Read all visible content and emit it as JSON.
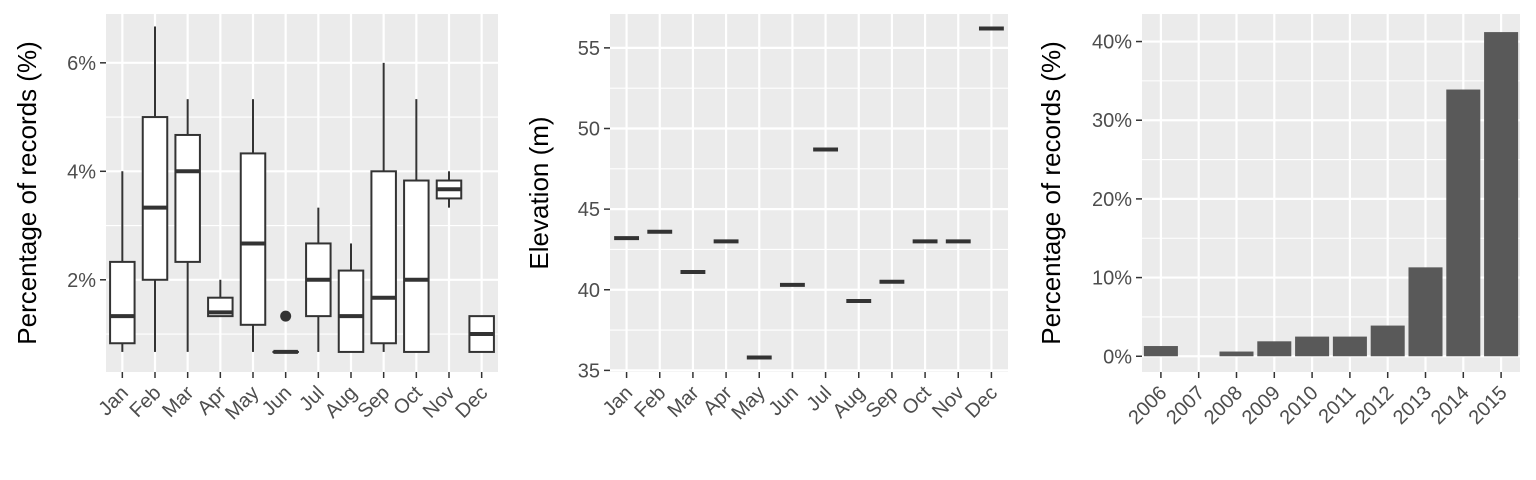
{
  "colors": {
    "panel_bg": "#EBEBEB",
    "grid_major": "#FFFFFF",
    "box_fill": "#FFFFFF",
    "box_stroke": "#333333",
    "bar_fill": "#595959",
    "tick_text": "#4D4D4D"
  },
  "chart_data": [
    {
      "type": "box",
      "xlabel": "",
      "ylabel": "Percentage of records (%)",
      "ylim": [
        0.3,
        6.9
      ],
      "yticks": [
        2,
        4,
        6
      ],
      "ytick_labels": [
        "2%",
        "4%",
        "6%"
      ],
      "grid": true,
      "categories": [
        "Jan",
        "Feb",
        "Mar",
        "Apr",
        "May",
        "Jun",
        "Jul",
        "Aug",
        "Sep",
        "Oct",
        "Nov",
        "Dec"
      ],
      "boxes": [
        {
          "min": 0.67,
          "q1": 0.83,
          "median": 1.33,
          "q3": 2.33,
          "max": 4.0
        },
        {
          "min": 0.67,
          "q1": 2.0,
          "median": 3.33,
          "q3": 5.0,
          "max": 6.67
        },
        {
          "min": 0.67,
          "q1": 2.33,
          "median": 4.0,
          "q3": 4.67,
          "max": 5.33
        },
        {
          "min": 1.33,
          "q1": 1.33,
          "median": 1.4,
          "q3": 1.67,
          "max": 2.0
        },
        {
          "min": 0.67,
          "q1": 1.17,
          "median": 2.67,
          "q3": 4.33,
          "max": 5.33
        },
        {
          "min": 0.67,
          "q1": 0.67,
          "median": 0.67,
          "q3": 0.67,
          "max": 0.67,
          "outliers": [
            1.33
          ]
        },
        {
          "min": 0.67,
          "q1": 1.33,
          "median": 2.0,
          "q3": 2.67,
          "max": 3.33
        },
        {
          "min": 0.67,
          "q1": 0.67,
          "median": 1.33,
          "q3": 2.17,
          "max": 2.67
        },
        {
          "min": 0.67,
          "q1": 0.83,
          "median": 1.67,
          "q3": 4.0,
          "max": 6.0
        },
        {
          "min": 0.67,
          "q1": 0.67,
          "median": 2.0,
          "q3": 3.83,
          "max": 5.33
        },
        {
          "min": 3.33,
          "q1": 3.5,
          "median": 3.67,
          "q3": 3.83,
          "max": 4.0
        },
        {
          "min": 0.67,
          "q1": 0.67,
          "median": 1.0,
          "q3": 1.33,
          "max": 1.33
        }
      ]
    },
    {
      "type": "box",
      "xlabel": "",
      "ylabel": "Elevation (m)",
      "ylim": [
        34.9,
        57.1
      ],
      "yticks": [
        35,
        40,
        45,
        50,
        55
      ],
      "ytick_labels": [
        "35",
        "40",
        "45",
        "50",
        "55"
      ],
      "grid": true,
      "categories": [
        "Jan",
        "Feb",
        "Mar",
        "Apr",
        "May",
        "Jun",
        "Jul",
        "Aug",
        "Sep",
        "Oct",
        "Nov",
        "Dec"
      ],
      "values": [
        43.2,
        43.6,
        41.1,
        43.0,
        35.8,
        40.3,
        48.7,
        39.3,
        40.5,
        43.0,
        43.0,
        56.2
      ]
    },
    {
      "type": "bar",
      "xlabel": "",
      "ylabel": "Percentage of records (%)",
      "ylim": [
        -2.0,
        43.5
      ],
      "yticks": [
        0,
        10,
        20,
        30,
        40
      ],
      "ytick_labels": [
        "0%",
        "10%",
        "20%",
        "30%",
        "40%"
      ],
      "grid": true,
      "categories": [
        "2006",
        "2007",
        "2008",
        "2009",
        "2010",
        "2011",
        "2012",
        "2013",
        "2014",
        "2015"
      ],
      "values": [
        1.3,
        0.0,
        0.6,
        1.9,
        2.5,
        2.5,
        3.9,
        11.3,
        33.9,
        41.2
      ]
    }
  ]
}
